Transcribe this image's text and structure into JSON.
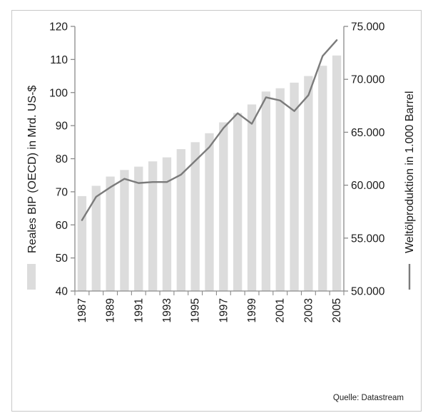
{
  "chart_data": {
    "type": "bar+line",
    "categories": [
      "1987",
      "1988",
      "1989",
      "1990",
      "1991",
      "1992",
      "1993",
      "1994",
      "1995",
      "1996",
      "1997",
      "1998",
      "1999",
      "2000",
      "2001",
      "2002",
      "2003",
      "2004",
      "2005"
    ],
    "x_tick_labels": [
      "1987",
      "1989",
      "1991",
      "1993",
      "1995",
      "1997",
      "1999",
      "2001",
      "2003",
      "2005"
    ],
    "series": [
      {
        "name": "Reales BIP (OECD) in Mrd. US-$",
        "type": "bar",
        "axis": "left",
        "color": "#dcdcdc",
        "values": [
          68.7,
          71.8,
          74.6,
          76.6,
          77.6,
          79.2,
          80.4,
          82.9,
          85.0,
          87.7,
          91.0,
          93.8,
          96.4,
          100.3,
          101.3,
          103.0,
          105.0,
          108.1,
          111.2
        ]
      },
      {
        "name": "Weltölproduktion in 1.000 Barrel",
        "type": "line",
        "axis": "right",
        "color": "#7b7b7b",
        "values": [
          56700,
          58900,
          59800,
          60600,
          60200,
          60300,
          60300,
          61000,
          62300,
          63600,
          65400,
          66800,
          65800,
          68300,
          68000,
          67000,
          68500,
          72200,
          73700
        ]
      }
    ],
    "left_axis": {
      "label": "Reales BIP (OECD) in Mrd. US-$",
      "ylim": [
        40,
        120
      ],
      "ticks": [
        "120",
        "110",
        "100",
        "90",
        "80",
        "70",
        "60",
        "50",
        "40"
      ]
    },
    "right_axis": {
      "label": "Weltölproduktion in 1.000 Barrel",
      "ylim": [
        50000,
        75000
      ],
      "ticks": [
        "75.000",
        "70.000",
        "65.000",
        "60.000",
        "55.000",
        "50.000"
      ]
    },
    "grid": false,
    "legend_placement": "embedded in axis titles"
  },
  "source": "Quelle: Datastream"
}
